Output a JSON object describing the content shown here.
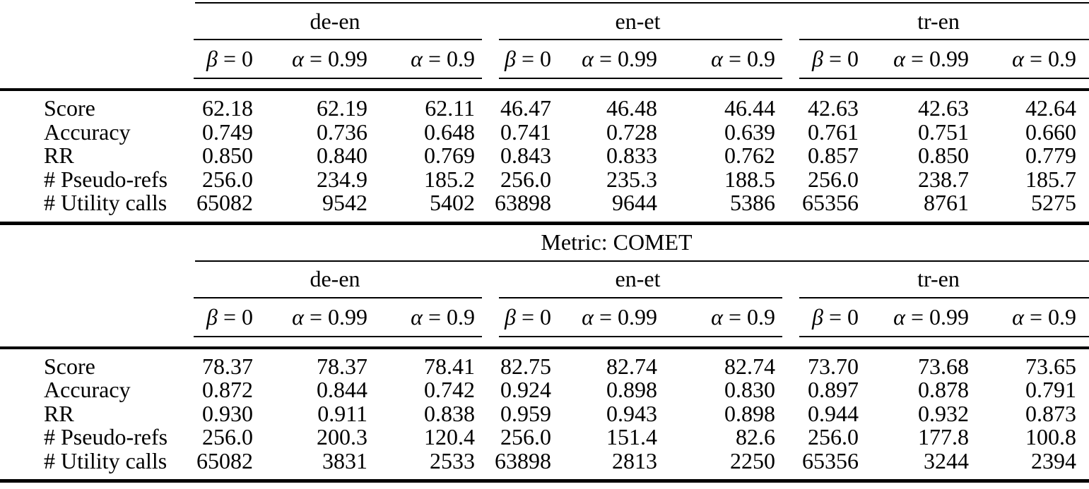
{
  "header": {
    "groups": [
      {
        "label": "de-en"
      },
      {
        "label": "en-et"
      },
      {
        "label": "tr-en"
      }
    ],
    "subcols": [
      {
        "sym": "β",
        "rest": " = 0"
      },
      {
        "sym": "α",
        "rest": " = 0.99"
      },
      {
        "sym": "α",
        "rest": " = 0.9"
      }
    ]
  },
  "tables": [
    {
      "rows": [
        {
          "label": "Score",
          "values": [
            "62.18",
            "62.19",
            "62.11",
            "46.47",
            "46.48",
            "46.44",
            "42.63",
            "42.63",
            "42.64"
          ]
        },
        {
          "label": "Accuracy",
          "values": [
            "0.749",
            "0.736",
            "0.648",
            "0.741",
            "0.728",
            "0.639",
            "0.761",
            "0.751",
            "0.660"
          ]
        },
        {
          "label": "RR",
          "values": [
            "0.850",
            "0.840",
            "0.769",
            "0.843",
            "0.833",
            "0.762",
            "0.857",
            "0.850",
            "0.779"
          ]
        },
        {
          "label": "# Pseudo-refs",
          "values": [
            "256.0",
            "234.9",
            "185.2",
            "256.0",
            "235.3",
            "188.5",
            "256.0",
            "238.7",
            "185.7"
          ]
        },
        {
          "label": "# Utility calls",
          "values": [
            "65082",
            "9542",
            "5402",
            "63898",
            "9644",
            "5386",
            "65356",
            "8761",
            "5275"
          ]
        }
      ]
    },
    {
      "title": "Metric: COMET",
      "rows": [
        {
          "label": "Score",
          "values": [
            "78.37",
            "78.37",
            "78.41",
            "82.75",
            "82.74",
            "82.74",
            "73.70",
            "73.68",
            "73.65"
          ]
        },
        {
          "label": "Accuracy",
          "values": [
            "0.872",
            "0.844",
            "0.742",
            "0.924",
            "0.898",
            "0.830",
            "0.897",
            "0.878",
            "0.791"
          ]
        },
        {
          "label": "RR",
          "values": [
            "0.930",
            "0.911",
            "0.838",
            "0.959",
            "0.943",
            "0.898",
            "0.944",
            "0.932",
            "0.873"
          ]
        },
        {
          "label": "# Pseudo-refs",
          "values": [
            "256.0",
            "200.3",
            "120.4",
            "256.0",
            "151.4",
            "82.6",
            "256.0",
            "177.8",
            "100.8"
          ]
        },
        {
          "label": "# Utility calls",
          "values": [
            "65082",
            "3831",
            "2533",
            "63898",
            "2813",
            "2250",
            "65356",
            "3244",
            "2394"
          ]
        }
      ]
    }
  ]
}
